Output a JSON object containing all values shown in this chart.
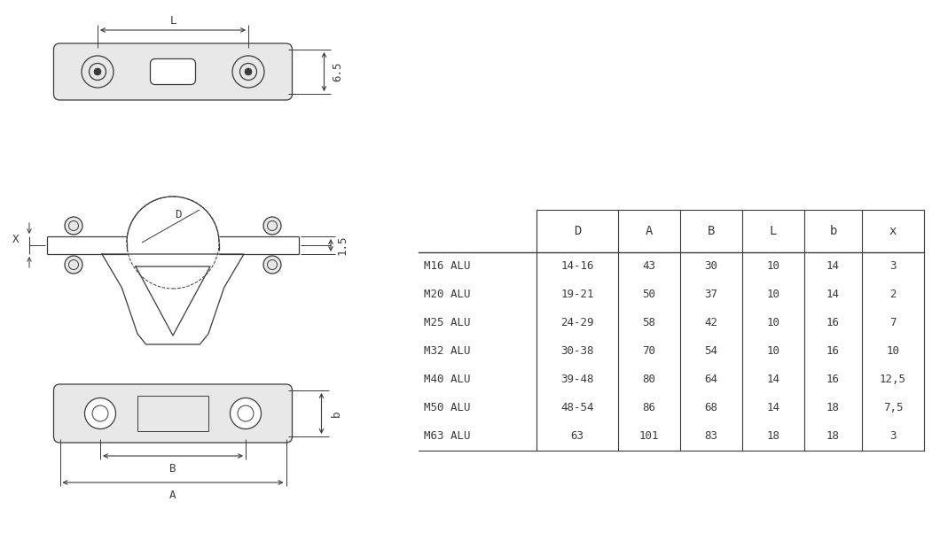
{
  "bg_color": "#ffffff",
  "line_color": "#3a3a3a",
  "table_headers": [
    "",
    "D",
    "A",
    "B",
    "L",
    "b",
    "x"
  ],
  "table_rows": [
    [
      "M16 ALU",
      "14-16",
      "43",
      "30",
      "10",
      "14",
      "3"
    ],
    [
      "M20 ALU",
      "19-21",
      "50",
      "37",
      "10",
      "14",
      "2"
    ],
    [
      "M25 ALU",
      "24-29",
      "58",
      "42",
      "10",
      "16",
      "7"
    ],
    [
      "M32 ALU",
      "30-38",
      "70",
      "54",
      "10",
      "16",
      "10"
    ],
    [
      "M40 ALU",
      "39-48",
      "80",
      "64",
      "14",
      "16",
      "12,5"
    ],
    [
      "M50 ALU",
      "48-54",
      "86",
      "68",
      "14",
      "18",
      "7,5"
    ],
    [
      "M63 ALU",
      "63",
      "101",
      "83",
      "18",
      "18",
      "3"
    ]
  ],
  "dim_65": "6.5",
  "dim_15": "1.5",
  "dim_L": "L",
  "dim_X": "X",
  "dim_D": "D",
  "dim_B": "B",
  "dim_A": "A",
  "dim_b": "b",
  "figsize": [
    10.51,
    6.19
  ],
  "dpi": 100
}
